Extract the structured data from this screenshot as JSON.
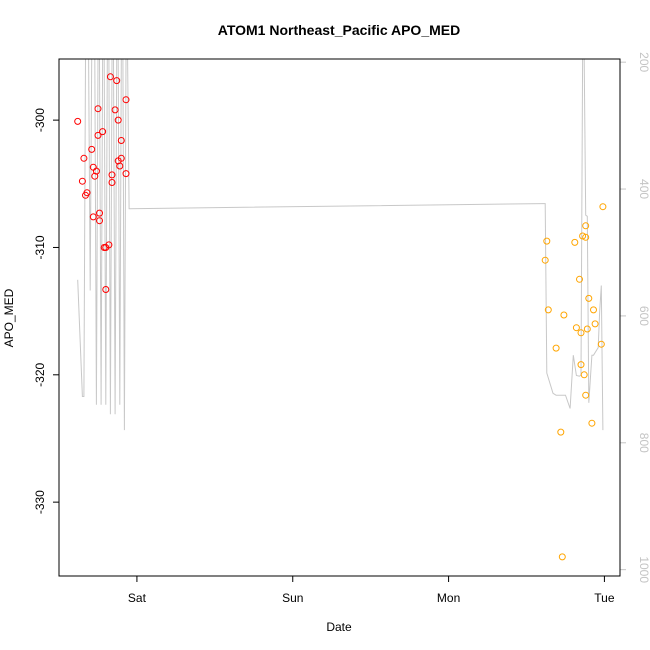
{
  "chart_data": {
    "type": "scatter",
    "title": "ATOM1 Northeast_Pacific APO_MED",
    "xlabel": "Date",
    "ylabel": "APO_MED",
    "xlim": [
      -0.5,
      3.1
    ],
    "ylim": [
      -335.8,
      -295.2
    ],
    "x_ticks": [
      {
        "value": 0,
        "label": "Sat"
      },
      {
        "value": 1,
        "label": "Sun"
      },
      {
        "value": 2,
        "label": "Mon"
      },
      {
        "value": 3,
        "label": "Tue"
      }
    ],
    "y_ticks": [
      {
        "value": -300,
        "label": "-300"
      },
      {
        "value": -310,
        "label": "-310"
      },
      {
        "value": -320,
        "label": "-320"
      },
      {
        "value": -330,
        "label": "-330"
      }
    ],
    "y2_ticks": [
      {
        "value": 200,
        "label": "200"
      },
      {
        "value": 400,
        "label": "400"
      },
      {
        "value": 600,
        "label": "600"
      },
      {
        "value": 800,
        "label": "800"
      },
      {
        "value": 1000,
        "label": "1000"
      }
    ],
    "grid": false,
    "colors": {
      "series_1": "#ff0000",
      "series_2": "#ffa500",
      "secondary_line": "#c8c8c8",
      "right_axis": "#c4c4c4"
    },
    "series": [
      {
        "color": "#ff0000",
        "marker": "open-circle",
        "points": [
          [
            -0.38,
            -300.1
          ],
          [
            -0.35,
            -304.8
          ],
          [
            -0.34,
            -303.0
          ],
          [
            -0.33,
            -305.9
          ],
          [
            -0.32,
            -305.7
          ],
          [
            -0.29,
            -302.3
          ],
          [
            -0.28,
            -307.6
          ],
          [
            -0.28,
            -303.7
          ],
          [
            -0.27,
            -304.4
          ],
          [
            -0.26,
            -304.0
          ],
          [
            -0.25,
            -301.2
          ],
          [
            -0.25,
            -299.1
          ],
          [
            -0.24,
            -307.3
          ],
          [
            -0.24,
            -307.9
          ],
          [
            -0.22,
            -300.9
          ],
          [
            -0.21,
            -310.0
          ],
          [
            -0.2,
            -313.3
          ],
          [
            -0.2,
            -310.0
          ],
          [
            -0.18,
            -309.8
          ],
          [
            -0.17,
            -296.6
          ],
          [
            -0.16,
            -304.9
          ],
          [
            -0.16,
            -304.3
          ],
          [
            -0.14,
            -299.2
          ],
          [
            -0.13,
            -296.9
          ],
          [
            -0.12,
            -303.2
          ],
          [
            -0.12,
            -300.0
          ],
          [
            -0.11,
            -303.6
          ],
          [
            -0.1,
            -301.6
          ],
          [
            -0.1,
            -303.0
          ],
          [
            -0.07,
            -298.4
          ],
          [
            -0.07,
            -304.2
          ]
        ]
      },
      {
        "color": "#ffa500",
        "marker": "open-circle",
        "points": [
          [
            2.62,
            -311.0
          ],
          [
            2.63,
            -309.5
          ],
          [
            2.64,
            -314.9
          ],
          [
            2.69,
            -317.9
          ],
          [
            2.72,
            -324.5
          ],
          [
            2.73,
            -334.3
          ],
          [
            2.74,
            -315.3
          ],
          [
            2.81,
            -309.6
          ],
          [
            2.82,
            -316.3
          ],
          [
            2.84,
            -312.5
          ],
          [
            2.85,
            -319.2
          ],
          [
            2.85,
            -316.7
          ],
          [
            2.86,
            -309.1
          ],
          [
            2.87,
            -320.0
          ],
          [
            2.88,
            -321.6
          ],
          [
            2.88,
            -308.3
          ],
          [
            2.88,
            -309.2
          ],
          [
            2.89,
            -316.4
          ],
          [
            2.9,
            -314.0
          ],
          [
            2.92,
            -323.8
          ],
          [
            2.93,
            -314.9
          ],
          [
            2.94,
            -316.0
          ],
          [
            2.98,
            -317.6
          ],
          [
            2.99,
            -306.8
          ]
        ]
      }
    ],
    "secondary_line": {
      "axis": "right-reversed",
      "ylim": [
        1010,
        195
      ],
      "points": [
        [
          -0.38,
          543
        ],
        [
          -0.35,
          727
        ],
        [
          -0.34,
          727
        ],
        [
          -0.33,
          195
        ],
        [
          -0.31,
          195
        ],
        [
          -0.3,
          560
        ],
        [
          -0.29,
          195
        ],
        [
          -0.27,
          195
        ],
        [
          -0.26,
          740
        ],
        [
          -0.25,
          195
        ],
        [
          -0.24,
          195
        ],
        [
          -0.23,
          740
        ],
        [
          -0.22,
          195
        ],
        [
          -0.21,
          195
        ],
        [
          -0.2,
          740
        ],
        [
          -0.19,
          195
        ],
        [
          -0.18,
          195
        ],
        [
          -0.17,
          755
        ],
        [
          -0.16,
          195
        ],
        [
          -0.15,
          195
        ],
        [
          -0.14,
          755
        ],
        [
          -0.13,
          195
        ],
        [
          -0.12,
          195
        ],
        [
          -0.11,
          740
        ],
        [
          -0.1,
          195
        ],
        [
          -0.09,
          195
        ],
        [
          -0.08,
          780
        ],
        [
          -0.07,
          195
        ],
        [
          -0.06,
          195
        ],
        [
          -0.05,
          431
        ],
        [
          2.6,
          423
        ],
        [
          2.62,
          423
        ],
        [
          2.63,
          690
        ],
        [
          2.67,
          722
        ],
        [
          2.69,
          725
        ],
        [
          2.72,
          725
        ],
        [
          2.75,
          725
        ],
        [
          2.78,
          746
        ],
        [
          2.8,
          662
        ],
        [
          2.82,
          694
        ],
        [
          2.84,
          695
        ],
        [
          2.85,
          693
        ],
        [
          2.86,
          195
        ],
        [
          2.87,
          195
        ],
        [
          2.88,
          441
        ],
        [
          2.89,
          443
        ],
        [
          2.9,
          737
        ],
        [
          2.92,
          662
        ],
        [
          2.93,
          662
        ],
        [
          2.96,
          650
        ],
        [
          2.97,
          592
        ],
        [
          2.98,
          552
        ],
        [
          2.99,
          780
        ]
      ]
    }
  }
}
